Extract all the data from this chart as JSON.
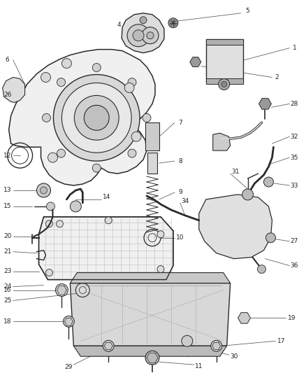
{
  "bg_color": "#ffffff",
  "fig_width": 4.38,
  "fig_height": 5.33,
  "dpi": 100,
  "line_color": "#2a2a2a",
  "label_color": "#222222",
  "label_fontsize": 6.5,
  "leader_color": "#555555",
  "leader_lw": 0.55,
  "part_lw": 0.9,
  "fill_light": "#e0e0e0",
  "fill_mid": "#c8c8c8",
  "fill_dark": "#aaaaaa"
}
